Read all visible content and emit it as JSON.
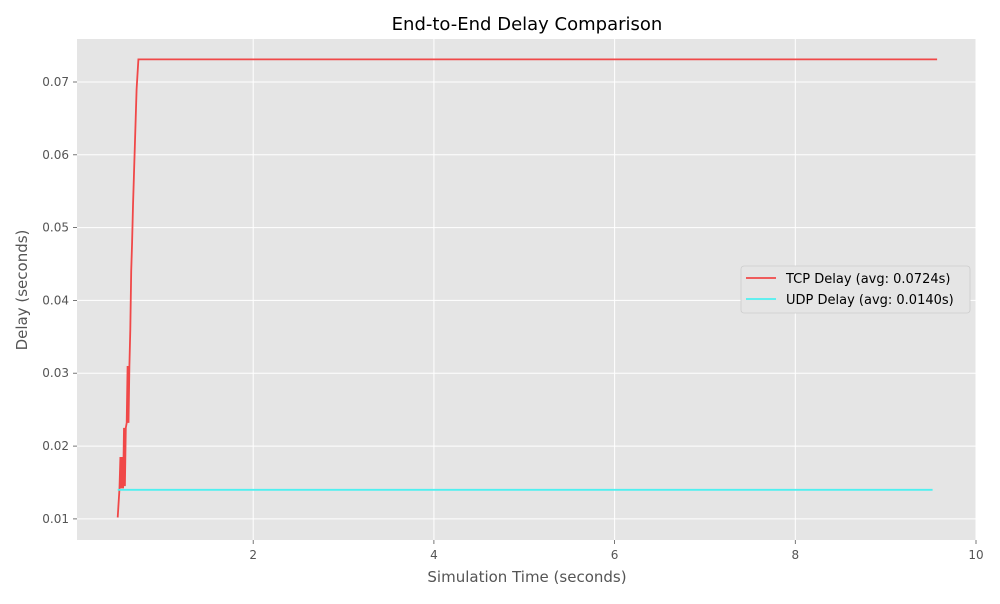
{
  "chart_data": {
    "type": "line",
    "title": "End-to-End Delay Comparison",
    "xlabel": "Simulation Time (seconds)",
    "ylabel": "Delay (seconds)",
    "xlim": [
      0.05,
      10.0
    ],
    "ylim": [
      0.0071,
      0.0759
    ],
    "xticks": [
      2,
      4,
      6,
      8,
      10
    ],
    "yticks": [
      0.01,
      0.02,
      0.03,
      0.04,
      0.05,
      0.06,
      0.07
    ],
    "xtick_labels": [
      "2",
      "4",
      "6",
      "8",
      "10"
    ],
    "ytick_labels": [
      "0.01",
      "0.02",
      "0.03",
      "0.04",
      "0.05",
      "0.06",
      "0.07"
    ],
    "grid": true,
    "legend_position": "center-right",
    "series": [
      {
        "name": "TCP Delay (avg: 0.0724s)",
        "color": "#f04848",
        "points": [
          [
            0.5,
            0.0102
          ],
          [
            0.52,
            0.0142
          ],
          [
            0.53,
            0.0185
          ],
          [
            0.54,
            0.0142
          ],
          [
            0.55,
            0.0185
          ],
          [
            0.56,
            0.0142
          ],
          [
            0.57,
            0.0225
          ],
          [
            0.58,
            0.0145
          ],
          [
            0.59,
            0.0225
          ],
          [
            0.6,
            0.0232
          ],
          [
            0.61,
            0.031
          ],
          [
            0.62,
            0.0232
          ],
          [
            0.63,
            0.031
          ],
          [
            0.64,
            0.036
          ],
          [
            0.65,
            0.044
          ],
          [
            0.66,
            0.048
          ],
          [
            0.67,
            0.053
          ],
          [
            0.68,
            0.057
          ],
          [
            0.69,
            0.061
          ],
          [
            0.7,
            0.065
          ],
          [
            0.71,
            0.069
          ],
          [
            0.73,
            0.0731
          ],
          [
            9.57,
            0.0731
          ]
        ]
      },
      {
        "name": "UDP Delay (avg: 0.0140s)",
        "color": "#4ef0f0",
        "points": [
          [
            0.5,
            0.014
          ],
          [
            9.52,
            0.014
          ]
        ]
      }
    ]
  }
}
